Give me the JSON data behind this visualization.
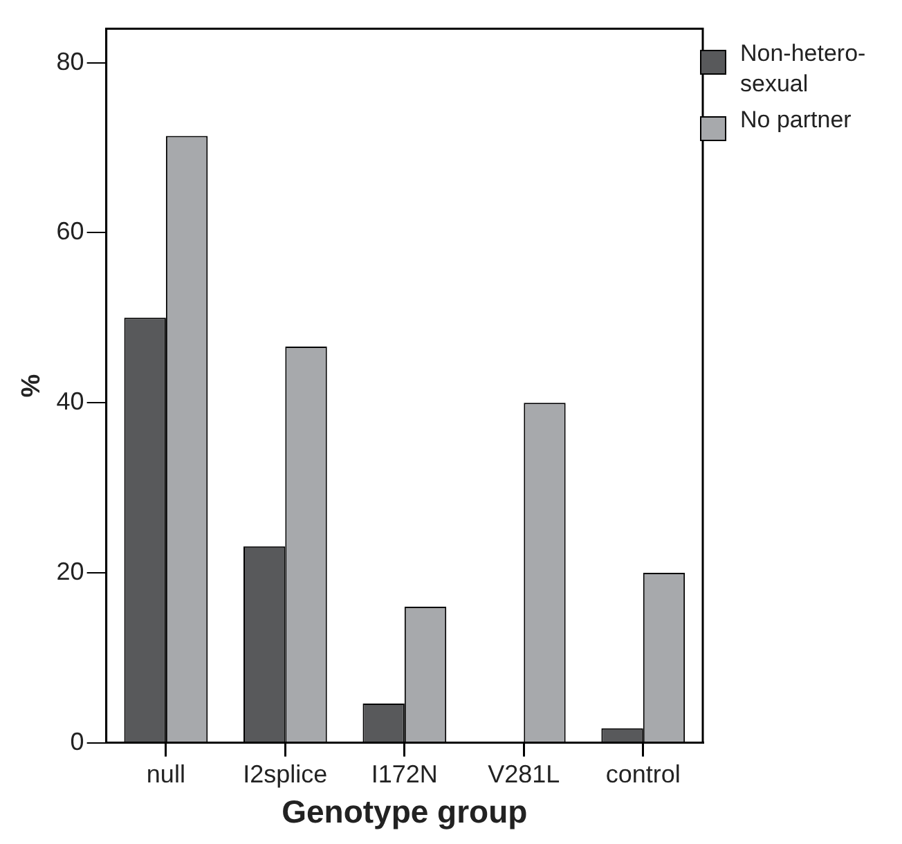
{
  "chart_data": {
    "type": "bar",
    "xlabel": "Genotype group",
    "ylabel": "%",
    "categories": [
      "null",
      "I2splice",
      "I172N",
      "V281L",
      "control"
    ],
    "series": [
      {
        "name": "Non-hetero-sexual",
        "color": "#58595b",
        "values": [
          50,
          23.1,
          4.6,
          0,
          1.7
        ]
      },
      {
        "name": "No partner",
        "color": "#a7a9ac",
        "values": [
          71.4,
          46.6,
          16,
          40,
          20
        ]
      }
    ],
    "ylim": [
      0,
      84
    ],
    "yticks": [
      0,
      20,
      40,
      60,
      80
    ],
    "grid": false,
    "legend": "top right"
  }
}
